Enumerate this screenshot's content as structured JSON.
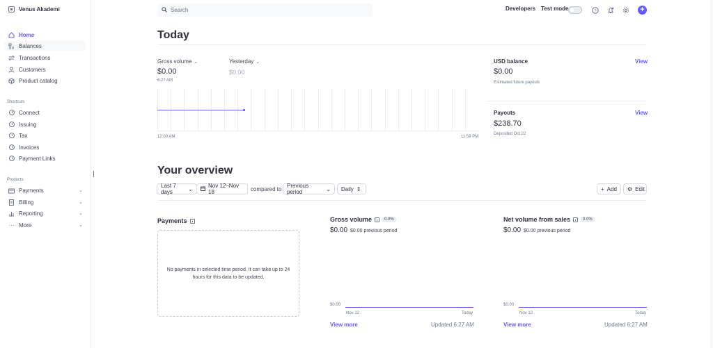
{
  "brand": {
    "name": "Venus Akademi"
  },
  "sidebar": {
    "main_items": [
      {
        "label": "Home",
        "icon": "home-icon"
      },
      {
        "label": "Balances",
        "icon": "balances-icon"
      },
      {
        "label": "Transactions",
        "icon": "transactions-icon"
      },
      {
        "label": "Customers",
        "icon": "customers-icon"
      },
      {
        "label": "Product catalog",
        "icon": "product-catalog-icon"
      }
    ],
    "shortcuts_label": "Shortcuts",
    "shortcuts": [
      {
        "label": "Connect"
      },
      {
        "label": "Issuing"
      },
      {
        "label": "Tax"
      },
      {
        "label": "Invoices"
      },
      {
        "label": "Payment Links"
      }
    ],
    "products_label": "Products",
    "products": [
      {
        "label": "Payments",
        "icon": "payments-icon"
      },
      {
        "label": "Billing",
        "icon": "billing-icon"
      },
      {
        "label": "Reporting",
        "icon": "reporting-icon"
      },
      {
        "label": "More",
        "icon": "more-icon"
      }
    ]
  },
  "topbar": {
    "search_placeholder": "Search",
    "developers": "Developers",
    "test_mode": "Test mode"
  },
  "today": {
    "title": "Today",
    "gross_volume_label": "Gross volume",
    "gross_volume_value": "$0.00",
    "gross_volume_time": "6:27 AM",
    "yesterday_label": "Yesterday",
    "yesterday_value": "$0.00",
    "x_start": "12:00 AM",
    "x_end": "11:59 PM",
    "progress_fraction": 0.27,
    "usd_balance_title": "USD balance",
    "usd_balance_view": "View",
    "usd_balance_value": "$0.00",
    "usd_balance_sub": "Estimated future payouts",
    "payouts_title": "Payouts",
    "payouts_view": "View",
    "payouts_value": "$238.70",
    "payouts_sub": "Deposited Oct 22"
  },
  "overview": {
    "title": "Your overview",
    "range_label": "Last 7 days",
    "date_range": "Nov 12–Nov 18",
    "compared_to": "compared to",
    "compare_period": "Previous period",
    "interval": "Daily",
    "add_label": "Add",
    "edit_label": "Edit",
    "payments_card": {
      "title": "Payments",
      "empty_text": "No payments in selected time period. It can take up to 24 hours for this data to be updated."
    },
    "gross_card": {
      "title": "Gross volume",
      "badge": "0.0%",
      "value": "$0.00",
      "prev": "$0.00 previous period",
      "y_label": "$0.00",
      "x_start": "Nov 12",
      "x_end": "Today",
      "view_more": "View more",
      "updated": "Updated 6:27 AM"
    },
    "net_card": {
      "title": "Net volume from sales",
      "badge": "0.0%",
      "value": "$0.00",
      "prev": "$0.00 previous period",
      "y_label": "$0.00",
      "x_start": "Nov 12",
      "x_end": "Today",
      "view_more": "View more",
      "updated": "Updated 6:27 AM"
    }
  },
  "colors": {
    "accent": "#635bff",
    "text": "#30313d",
    "muted": "#6c7688",
    "border": "#ebeef1"
  }
}
